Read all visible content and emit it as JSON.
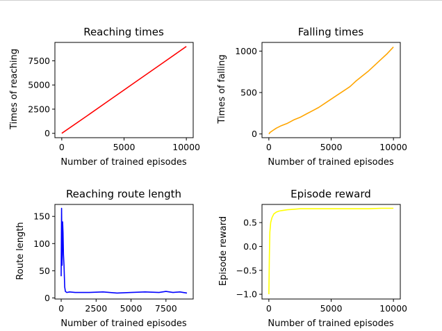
{
  "chart_data": [
    {
      "type": "line",
      "title": "Reaching times",
      "xlabel": "Number of trained episodes",
      "ylabel": "Times of reaching",
      "xlim": [
        -550,
        10550
      ],
      "ylim": [
        -450,
        9400
      ],
      "xticks": [
        0,
        5000,
        10000
      ],
      "xtick_labels": [
        "0",
        "5000",
        "10000"
      ],
      "yticks": [
        0,
        2500,
        5000,
        7500
      ],
      "ytick_labels": [
        "0",
        "2500",
        "5000",
        "7500"
      ],
      "grid": false,
      "series": [
        {
          "color": "#ff0000",
          "x": [
            0,
            2000,
            4000,
            6000,
            8000,
            10000
          ],
          "y": [
            0,
            1780,
            3580,
            5380,
            7180,
            8980
          ]
        }
      ]
    },
    {
      "type": "line",
      "title": "Falling times",
      "xlabel": "Number of trained episodes",
      "ylabel": "Times of falling",
      "xlim": [
        -550,
        10550
      ],
      "ylim": [
        -45,
        1105
      ],
      "xticks": [
        0,
        5000,
        10000
      ],
      "xtick_labels": [
        "0",
        "5000",
        "10000"
      ],
      "yticks": [
        0,
        500,
        1000
      ],
      "ytick_labels": [
        "0",
        "500",
        "1000"
      ],
      "grid": false,
      "series": [
        {
          "color": "#ffa500",
          "x": [
            0,
            100,
            300,
            600,
            1000,
            1500,
            2000,
            2500,
            3000,
            3500,
            4000,
            4500,
            5000,
            5500,
            6000,
            6500,
            7000,
            7500,
            8000,
            8500,
            9000,
            9500,
            10000
          ],
          "y": [
            0,
            20,
            40,
            70,
            100,
            130,
            170,
            200,
            240,
            280,
            320,
            370,
            420,
            470,
            520,
            570,
            640,
            700,
            760,
            830,
            900,
            970,
            1050
          ]
        }
      ]
    },
    {
      "type": "line",
      "title": "Reaching route length",
      "xlabel": "Number of trained episodes",
      "ylabel": "Route length",
      "xlim": [
        -450,
        9450
      ],
      "ylim": [
        -2,
        172
      ],
      "xticks": [
        0,
        2500,
        5000,
        7500
      ],
      "xtick_labels": [
        "0",
        "2500",
        "5000",
        "7500"
      ],
      "yticks": [
        0,
        50,
        100,
        150
      ],
      "ytick_labels": [
        "0",
        "50",
        "100",
        "150"
      ],
      "grid": false,
      "series": [
        {
          "color": "#0000ff",
          "x": [
            0,
            30,
            60,
            100,
            130,
            160,
            200,
            250,
            300,
            400,
            600,
            1000,
            2000,
            3000,
            4000,
            5000,
            6000,
            7000,
            7500,
            8000,
            8500,
            9000
          ],
          "y": [
            40,
            165,
            60,
            140,
            120,
            80,
            60,
            20,
            12,
            10,
            11,
            10,
            10,
            11,
            9,
            10,
            11,
            10,
            12,
            10,
            11,
            9
          ]
        }
      ]
    },
    {
      "type": "line",
      "title": "Episode reward",
      "xlabel": "Number of trained episodes",
      "ylabel": "Episode reward",
      "xlim": [
        -550,
        10550
      ],
      "ylim": [
        -1.1,
        0.88
      ],
      "xticks": [
        0,
        5000,
        10000
      ],
      "xtick_labels": [
        "0",
        "5000",
        "10000"
      ],
      "yticks": [
        -1.0,
        -0.5,
        0.0,
        0.5
      ],
      "ytick_labels": [
        "−1.0",
        "−0.5",
        "0.0",
        "0.5"
      ],
      "grid": false,
      "series": [
        {
          "color": "#ffff00",
          "x": [
            0,
            40,
            80,
            150,
            250,
            400,
            600,
            800,
            1000,
            1500,
            2000,
            2500,
            3000,
            4000,
            5000,
            6000,
            7000,
            8000,
            9000,
            10000
          ],
          "y": [
            -1.0,
            -0.2,
            0.3,
            0.5,
            0.6,
            0.68,
            0.72,
            0.74,
            0.75,
            0.77,
            0.78,
            0.79,
            0.79,
            0.79,
            0.79,
            0.79,
            0.79,
            0.79,
            0.8,
            0.8
          ]
        }
      ]
    }
  ]
}
